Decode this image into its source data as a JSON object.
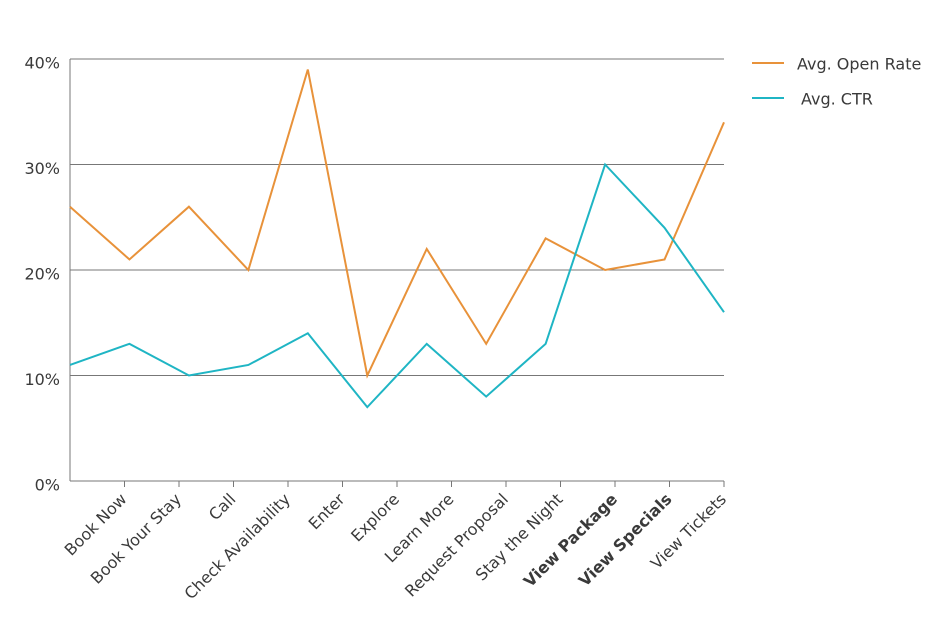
{
  "chart_data": {
    "type": "line",
    "categories": [
      "Book Now",
      "Book Your Stay",
      "Call",
      "Check Availability",
      "Enter",
      "Explore",
      "Learn More",
      "Request Proposal",
      "Stay the Night",
      "View Package",
      "View Specials",
      "View Tickets"
    ],
    "series": [
      {
        "name": "Avg. Open Rate",
        "color": "#e8923a",
        "values": [
          26,
          21,
          26,
          20,
          39,
          10,
          22,
          13,
          23,
          20,
          21,
          34
        ]
      },
      {
        "name": "Avg. CTR",
        "color": "#1fb5c4",
        "values": [
          11,
          13,
          10,
          11,
          14,
          7,
          13,
          8,
          13,
          30,
          24,
          16
        ]
      }
    ],
    "ylim": [
      0,
      40
    ],
    "yticks": [
      {
        "value": 0,
        "label": "0%"
      },
      {
        "value": 10,
        "label": "10%"
      },
      {
        "value": 20,
        "label": "20%"
      },
      {
        "value": 30,
        "label": "30%"
      },
      {
        "value": 40,
        "label": "40%"
      }
    ],
    "grid": true,
    "legend": "top-right"
  }
}
